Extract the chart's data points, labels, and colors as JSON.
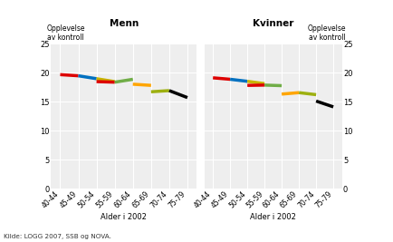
{
  "title_left": "Menn",
  "title_right": "Kvinner",
  "ylabel": "Opplevelse\nav kontroll",
  "xlabel": "Alder i 2002",
  "source": "Kilde: LOGG 2007, SSB og NOVA.",
  "x_labels": [
    "40-44",
    "45-49",
    "50-54",
    "55-59",
    "60-64",
    "65-69",
    "70-74",
    "75-79"
  ],
  "ylim": [
    0,
    25
  ],
  "yticks": [
    0,
    5,
    10,
    15,
    20,
    25
  ],
  "line_data_men": [
    [
      0,
      1,
      19.65,
      19.45,
      "#dd0000"
    ],
    [
      1,
      2,
      19.45,
      18.95,
      "#0070c0"
    ],
    [
      2,
      3,
      18.95,
      18.45,
      "#c8b400"
    ],
    [
      2,
      3,
      18.45,
      18.35,
      "#dd0000"
    ],
    [
      3,
      4,
      18.35,
      18.85,
      "#70ad47"
    ],
    [
      4,
      5,
      18.0,
      17.8,
      "#ffa500"
    ],
    [
      5,
      6,
      16.7,
      16.9,
      "#9db010"
    ],
    [
      6,
      7,
      16.9,
      15.7,
      "#000000"
    ]
  ],
  "line_data_women": [
    [
      0,
      1,
      19.1,
      18.85,
      "#dd0000"
    ],
    [
      1,
      2,
      18.85,
      18.5,
      "#0070c0"
    ],
    [
      2,
      3,
      18.5,
      18.1,
      "#c8b400"
    ],
    [
      2,
      3,
      17.8,
      17.85,
      "#dd0000"
    ],
    [
      3,
      4,
      17.85,
      17.75,
      "#70ad47"
    ],
    [
      4,
      5,
      16.3,
      16.55,
      "#ffa500"
    ],
    [
      5,
      6,
      16.55,
      16.2,
      "#9db010"
    ],
    [
      6,
      7,
      15.1,
      14.1,
      "#000000"
    ]
  ],
  "fig_bg": "#ffffff",
  "plot_bg": "#eeeeee",
  "grid_color": "#ffffff",
  "lw": 2.5
}
